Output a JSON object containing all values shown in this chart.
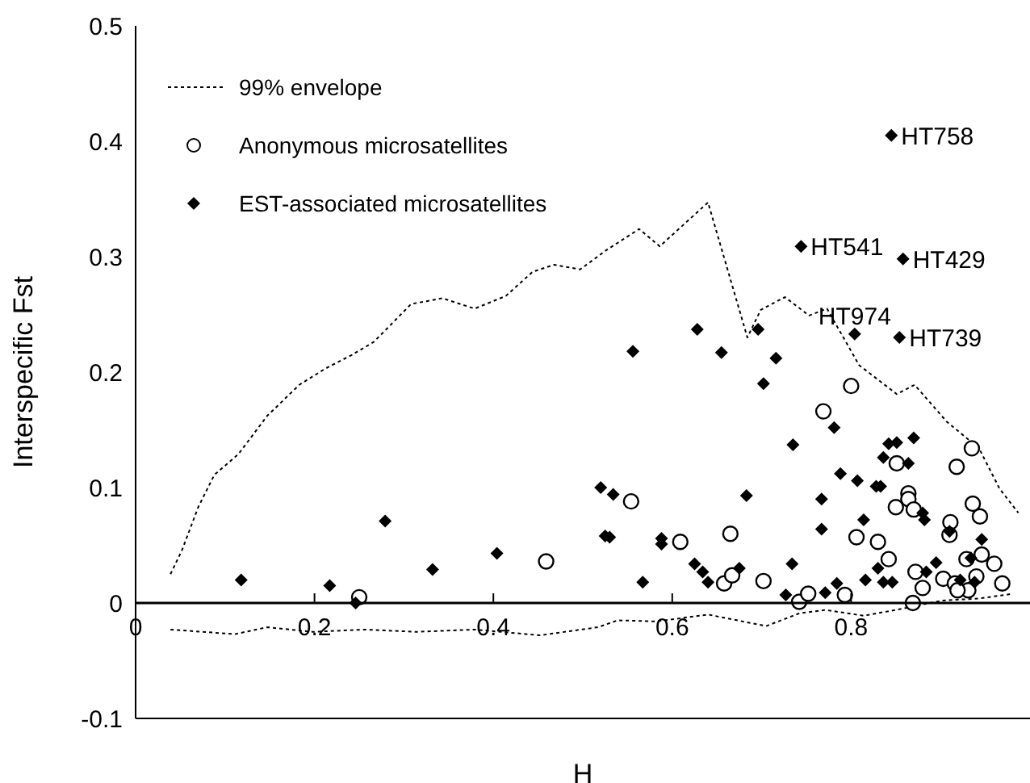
{
  "chart_data": {
    "type": "scatter",
    "xlabel": "H",
    "ylabel": "Interspecific Fst",
    "xlim": [
      0,
      1
    ],
    "ylim": [
      -0.1,
      0.5
    ],
    "xticks": [
      0,
      0.2,
      0.4,
      0.6,
      0.8
    ],
    "yticks": [
      -0.1,
      0,
      0.1,
      0.2,
      0.3,
      0.4,
      0.5
    ],
    "grid": false,
    "legend": "top left",
    "annotations": [
      {
        "text": "HT758",
        "x": 0.845,
        "y": 0.405
      },
      {
        "text": "HT541",
        "x": 0.744,
        "y": 0.309
      },
      {
        "text": "HT429",
        "x": 0.858,
        "y": 0.298
      },
      {
        "text": "HT974",
        "x": 0.804,
        "y": 0.233
      },
      {
        "text": "HT739",
        "x": 0.854,
        "y": 0.23
      }
    ],
    "series": [
      {
        "name": "99% envelope",
        "type": "line",
        "line_style": "dotted",
        "marker": "none",
        "color": "#000000",
        "x": [
          0.039,
          0.052,
          0.07,
          0.088,
          0.115,
          0.147,
          0.183,
          0.212,
          0.242,
          0.266,
          0.284,
          0.308,
          0.343,
          0.379,
          0.414,
          0.444,
          0.468,
          0.497,
          0.527,
          0.563,
          0.586,
          0.64,
          0.684,
          0.699,
          0.726,
          0.753,
          0.773,
          0.809,
          0.851,
          0.871,
          0.907,
          0.943,
          0.966,
          0.987
        ],
        "values": [
          0.025,
          0.046,
          0.083,
          0.111,
          0.129,
          0.162,
          0.189,
          0.203,
          0.215,
          0.226,
          0.24,
          0.259,
          0.264,
          0.255,
          0.266,
          0.287,
          0.293,
          0.289,
          0.306,
          0.324,
          0.309,
          0.347,
          0.23,
          0.254,
          0.265,
          0.249,
          0.255,
          0.206,
          0.181,
          0.189,
          0.157,
          0.134,
          0.099,
          0.078
        ]
      },
      {
        "type": "line",
        "line_style": "dotted",
        "marker": "none",
        "color": "#000000",
        "x": [
          0.039,
          0.111,
          0.147,
          0.198,
          0.256,
          0.314,
          0.379,
          0.452,
          0.517,
          0.539,
          0.582,
          0.64,
          0.705,
          0.742,
          0.771,
          0.814,
          0.85,
          0.901,
          0.944,
          0.981
        ],
        "values": [
          -0.023,
          -0.027,
          -0.021,
          -0.025,
          -0.023,
          -0.025,
          -0.023,
          -0.028,
          -0.021,
          -0.015,
          -0.016,
          -0.01,
          -0.02,
          -0.009,
          -0.006,
          -0.011,
          -0.006,
          0.002,
          0.004,
          0.008
        ]
      },
      {
        "name": "Anonymous microsatellites",
        "marker": "circle",
        "color": "#000000",
        "x": [
          0.25,
          0.459,
          0.554,
          0.609,
          0.665,
          0.658,
          0.667,
          0.702,
          0.742,
          0.752,
          0.793,
          0.8,
          0.769,
          0.851,
          0.864,
          0.864,
          0.85,
          0.87,
          0.806,
          0.83,
          0.842,
          0.872,
          0.88,
          0.869,
          0.935,
          0.918,
          0.936,
          0.944,
          0.911,
          0.91,
          0.929,
          0.946,
          0.96,
          0.969,
          0.903,
          0.916,
          0.931,
          0.919,
          0.94
        ],
        "values": [
          0.005,
          0.036,
          0.088,
          0.053,
          0.06,
          0.017,
          0.024,
          0.019,
          0.001,
          0.008,
          0.007,
          0.188,
          0.166,
          0.121,
          0.095,
          0.09,
          0.083,
          0.081,
          0.057,
          0.053,
          0.038,
          0.027,
          0.013,
          0.0,
          0.134,
          0.118,
          0.086,
          0.075,
          0.07,
          0.059,
          0.038,
          0.042,
          0.034,
          0.017,
          0.021,
          0.017,
          0.011,
          0.011,
          0.023
        ]
      },
      {
        "name": "EST-associated microsatellites",
        "marker": "diamond",
        "color": "#000000",
        "x": [
          0.118,
          0.217,
          0.246,
          0.279,
          0.332,
          0.404,
          0.52,
          0.525,
          0.845,
          0.744,
          0.858,
          0.804,
          0.854,
          0.556,
          0.628,
          0.655,
          0.696,
          0.716,
          0.702,
          0.735,
          0.781,
          0.788,
          0.807,
          0.828,
          0.833,
          0.836,
          0.842,
          0.851,
          0.87,
          0.864,
          0.767,
          0.767,
          0.814,
          0.882,
          0.683,
          0.53,
          0.534,
          0.588,
          0.588,
          0.625,
          0.634,
          0.64,
          0.675,
          0.567,
          0.734,
          0.727,
          0.771,
          0.784,
          0.816,
          0.83,
          0.836,
          0.846,
          0.884,
          0.895,
          0.91,
          0.946,
          0.934,
          0.938,
          0.922,
          0.88
        ],
        "values": [
          0.02,
          0.015,
          0.0,
          0.071,
          0.029,
          0.043,
          0.1,
          0.058,
          0.405,
          0.309,
          0.298,
          0.233,
          0.23,
          0.218,
          0.237,
          0.217,
          0.237,
          0.212,
          0.19,
          0.137,
          0.152,
          0.112,
          0.106,
          0.101,
          0.101,
          0.126,
          0.138,
          0.139,
          0.143,
          0.121,
          0.09,
          0.064,
          0.072,
          0.072,
          0.093,
          0.057,
          0.094,
          0.056,
          0.051,
          0.034,
          0.027,
          0.018,
          0.03,
          0.018,
          0.034,
          0.007,
          0.009,
          0.017,
          0.02,
          0.03,
          0.018,
          0.018,
          0.027,
          0.035,
          0.062,
          0.055,
          0.039,
          0.018,
          0.02,
          0.078
        ]
      }
    ]
  }
}
